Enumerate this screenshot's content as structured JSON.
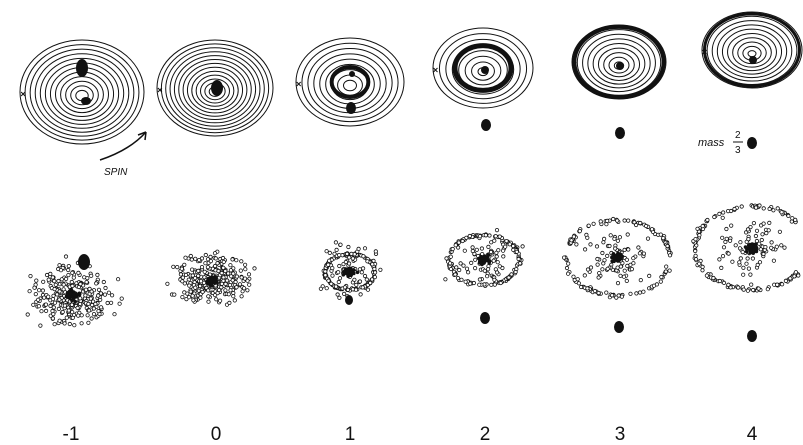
{
  "frame_labels": [
    "-1",
    "0",
    "1",
    "2",
    "3",
    "4"
  ],
  "spin_label": "SPIN",
  "mass_label": "mass",
  "mass_fraction": {
    "numerator": "2",
    "denominator": "3"
  },
  "ink_color": "#111111",
  "background_color": "#ffffff"
}
